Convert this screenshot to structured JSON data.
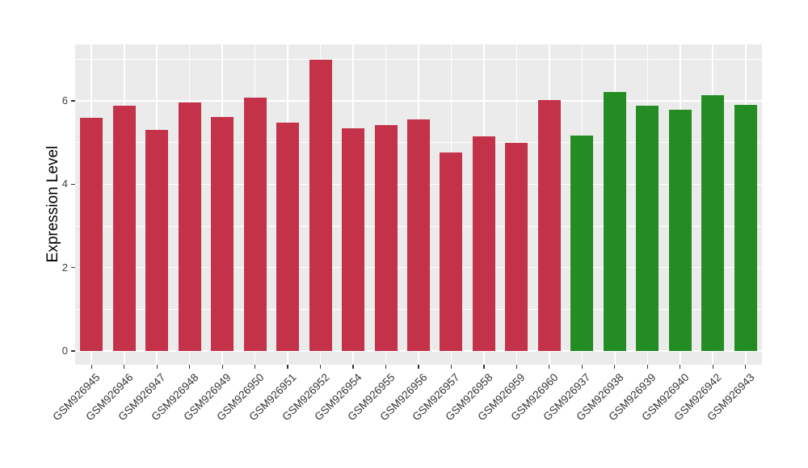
{
  "chart_data": {
    "type": "bar",
    "title": "",
    "xlabel": "",
    "ylabel": "Expression Level",
    "ylim": [
      0,
      7.35
    ],
    "yticks_major": [
      0,
      2,
      4,
      6
    ],
    "yticks_minor": [
      1,
      3,
      5,
      7
    ],
    "grid": "on",
    "legend": "none",
    "categories": [
      "GSM926945",
      "GSM926946",
      "GSM926947",
      "GSM926948",
      "GSM926949",
      "GSM926950",
      "GSM926951",
      "GSM926952",
      "GSM926954",
      "GSM926955",
      "GSM926956",
      "GSM926957",
      "GSM926958",
      "GSM926959",
      "GSM926960",
      "GSM926937",
      "GSM926938",
      "GSM926939",
      "GSM926940",
      "GSM926942",
      "GSM926943"
    ],
    "values": [
      5.6,
      5.88,
      5.31,
      5.96,
      5.61,
      6.08,
      5.48,
      6.98,
      5.34,
      5.41,
      5.55,
      4.76,
      5.14,
      5.0,
      6.02,
      5.17,
      6.21,
      5.88,
      5.79,
      6.13,
      5.9
    ],
    "bar_colors": [
      "#C33249",
      "#C33249",
      "#C33249",
      "#C33249",
      "#C33249",
      "#C33249",
      "#C33249",
      "#C33249",
      "#C33249",
      "#C33249",
      "#C33249",
      "#C33249",
      "#C33249",
      "#C33249",
      "#C33249",
      "#238C23",
      "#238C23",
      "#238C23",
      "#238C23",
      "#238C23",
      "#238C23"
    ],
    "colors": {
      "bar_red": "#C33249",
      "bar_green": "#238C23",
      "panel_background": "#EBEBEB",
      "gridline": "#FFFFFF",
      "tick_mark": "#333333",
      "axis_text": "#404040",
      "axis_title": "#000000"
    }
  }
}
